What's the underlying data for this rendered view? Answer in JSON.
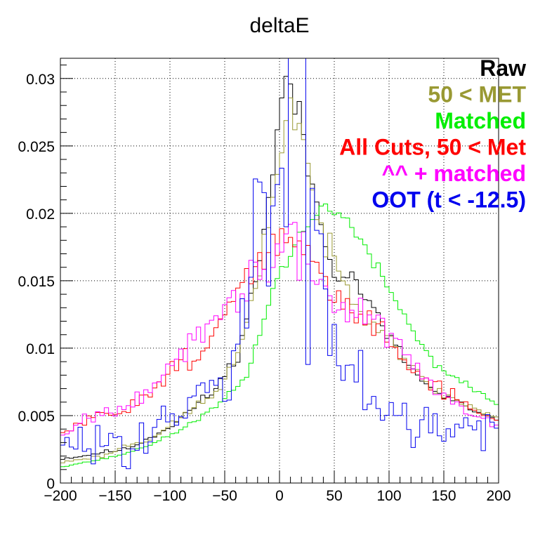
{
  "chart_data": {
    "type": "line",
    "title": "deltaE",
    "xlabel": "",
    "ylabel": "",
    "xlim": [
      -200,
      200
    ],
    "ylim": [
      0,
      0.0315
    ],
    "bin_width": 4,
    "grid": true,
    "legend_placement": "top-right",
    "x_ticks": [
      "−200",
      "−150",
      "−100",
      "−50",
      "0",
      "50",
      "100",
      "150",
      "200"
    ],
    "x_tick_values": [
      -200,
      -150,
      -100,
      -50,
      0,
      50,
      100,
      150,
      200
    ],
    "y_ticks": [
      "0",
      "0.005",
      "0.01",
      "0.015",
      "0.02",
      "0.025",
      "0.03"
    ],
    "y_tick_values": [
      0,
      0.005,
      0.01,
      0.015,
      0.02,
      0.025,
      0.03
    ],
    "series": [
      {
        "name": "Raw",
        "color": "#000000",
        "knots": [
          [
            -200,
            0.0018
          ],
          [
            -180,
            0.002
          ],
          [
            -160,
            0.0023
          ],
          [
            -140,
            0.0025
          ],
          [
            -120,
            0.0033
          ],
          [
            -100,
            0.0042
          ],
          [
            -80,
            0.0055
          ],
          [
            -60,
            0.0068
          ],
          [
            -40,
            0.0092
          ],
          [
            -30,
            0.012
          ],
          [
            -20,
            0.016
          ],
          [
            -10,
            0.021
          ],
          [
            0,
            0.0265
          ],
          [
            5,
            0.0305
          ],
          [
            10,
            0.0295
          ],
          [
            20,
            0.026
          ],
          [
            30,
            0.022
          ],
          [
            40,
            0.0185
          ],
          [
            50,
            0.016
          ],
          [
            60,
            0.0155
          ],
          [
            70,
            0.015
          ],
          [
            80,
            0.0135
          ],
          [
            100,
            0.0108
          ],
          [
            120,
            0.0085
          ],
          [
            140,
            0.0068
          ],
          [
            160,
            0.006
          ],
          [
            180,
            0.0052
          ],
          [
            200,
            0.0045
          ]
        ],
        "noise": 0.09,
        "seed": 11
      },
      {
        "name": "50 < MET",
        "color": "#999933",
        "knots": [
          [
            -200,
            0.0015
          ],
          [
            -180,
            0.0018
          ],
          [
            -160,
            0.002
          ],
          [
            -140,
            0.0028
          ],
          [
            -120,
            0.0032
          ],
          [
            -100,
            0.0042
          ],
          [
            -80,
            0.0055
          ],
          [
            -60,
            0.0065
          ],
          [
            -40,
            0.009
          ],
          [
            -30,
            0.0118
          ],
          [
            -20,
            0.0145
          ],
          [
            -10,
            0.0195
          ],
          [
            0,
            0.0245
          ],
          [
            10,
            0.028
          ],
          [
            20,
            0.0265
          ],
          [
            30,
            0.0215
          ],
          [
            40,
            0.018
          ],
          [
            50,
            0.0165
          ],
          [
            60,
            0.0145
          ],
          [
            70,
            0.0135
          ],
          [
            80,
            0.0125
          ],
          [
            100,
            0.011
          ],
          [
            120,
            0.0085
          ],
          [
            140,
            0.007
          ],
          [
            160,
            0.0062
          ],
          [
            180,
            0.0055
          ],
          [
            200,
            0.0048
          ]
        ],
        "noise": 0.09,
        "seed": 23
      },
      {
        "name": "Matched",
        "color": "#00ee00",
        "knots": [
          [
            -200,
            0.0012
          ],
          [
            -180,
            0.0015
          ],
          [
            -160,
            0.0018
          ],
          [
            -140,
            0.0022
          ],
          [
            -120,
            0.0028
          ],
          [
            -100,
            0.0035
          ],
          [
            -80,
            0.0045
          ],
          [
            -60,
            0.0055
          ],
          [
            -40,
            0.007
          ],
          [
            -30,
            0.008
          ],
          [
            -20,
            0.0105
          ],
          [
            -10,
            0.0135
          ],
          [
            0,
            0.0155
          ],
          [
            10,
            0.017
          ],
          [
            20,
            0.0185
          ],
          [
            30,
            0.0195
          ],
          [
            40,
            0.0205
          ],
          [
            50,
            0.0205
          ],
          [
            60,
            0.0195
          ],
          [
            70,
            0.0185
          ],
          [
            80,
            0.017
          ],
          [
            100,
            0.0145
          ],
          [
            120,
            0.0115
          ],
          [
            140,
            0.009
          ],
          [
            160,
            0.0078
          ],
          [
            180,
            0.0068
          ],
          [
            200,
            0.0058
          ]
        ],
        "noise": 0.05,
        "seed": 37
      },
      {
        "name": "All Cuts, 50 < Met",
        "color": "#ff0000",
        "knots": [
          [
            -200,
            0.0035
          ],
          [
            -180,
            0.0045
          ],
          [
            -160,
            0.005
          ],
          [
            -140,
            0.0055
          ],
          [
            -120,
            0.0068
          ],
          [
            -100,
            0.0082
          ],
          [
            -80,
            0.0095
          ],
          [
            -60,
            0.011
          ],
          [
            -40,
            0.0135
          ],
          [
            -20,
            0.0165
          ],
          [
            0,
            0.0175
          ],
          [
            5,
            0.019
          ],
          [
            15,
            0.0175
          ],
          [
            30,
            0.0165
          ],
          [
            50,
            0.0135
          ],
          [
            70,
            0.0125
          ],
          [
            90,
            0.0118
          ],
          [
            110,
            0.0098
          ],
          [
            130,
            0.0078
          ],
          [
            150,
            0.0068
          ],
          [
            170,
            0.0058
          ],
          [
            200,
            0.0045
          ]
        ],
        "noise": 0.14,
        "seed": 51
      },
      {
        "name": "^^ + matched",
        "color": "#ff00ff",
        "knots": [
          [
            -200,
            0.0035
          ],
          [
            -180,
            0.0048
          ],
          [
            -160,
            0.0052
          ],
          [
            -140,
            0.006
          ],
          [
            -120,
            0.007
          ],
          [
            -100,
            0.0085
          ],
          [
            -80,
            0.01
          ],
          [
            -60,
            0.012
          ],
          [
            -40,
            0.0135
          ],
          [
            -20,
            0.016
          ],
          [
            0,
            0.0165
          ],
          [
            10,
            0.0185
          ],
          [
            20,
            0.0165
          ],
          [
            30,
            0.0155
          ],
          [
            50,
            0.0135
          ],
          [
            70,
            0.0128
          ],
          [
            90,
            0.012
          ],
          [
            110,
            0.01
          ],
          [
            130,
            0.0078
          ],
          [
            150,
            0.0065
          ],
          [
            170,
            0.0052
          ],
          [
            200,
            0.0045
          ]
        ],
        "noise": 0.16,
        "seed": 67
      },
      {
        "name": "OOT (t < -12.5)",
        "color": "#0000ee",
        "knots": [
          [
            -200,
            0.0025
          ],
          [
            -160,
            0.003
          ],
          [
            -120,
            0.0035
          ],
          [
            -100,
            0.0045
          ],
          [
            -80,
            0.0052
          ],
          [
            -60,
            0.0065
          ],
          [
            -40,
            0.0095
          ],
          [
            -20,
            0.0165
          ],
          [
            0,
            0.0255
          ],
          [
            10,
            0.028
          ],
          [
            20,
            0.0245
          ],
          [
            30,
            0.018
          ],
          [
            50,
            0.0125
          ],
          [
            70,
            0.0085
          ],
          [
            90,
            0.0065
          ],
          [
            110,
            0.0055
          ],
          [
            140,
            0.0045
          ],
          [
            170,
            0.0042
          ],
          [
            200,
            0.0045
          ]
        ],
        "noise": 0.75,
        "seed": 83
      }
    ]
  }
}
